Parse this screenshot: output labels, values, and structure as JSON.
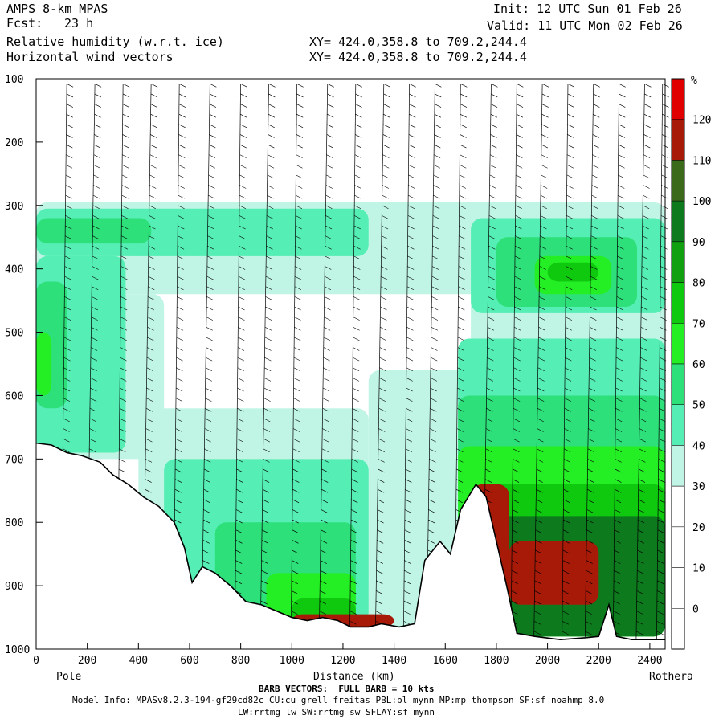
{
  "header": {
    "model": "AMPS 8-km MPAS",
    "fcst_label": "Fcst:",
    "fcst_value": "23 h",
    "field1": "Relative humidity (w.r.t. ice)",
    "field2": "Horizontal wind vectors",
    "init": "Init: 12 UTC Sun 01 Feb 26",
    "valid": "Valid: 11 UTC Mon 02 Feb 26",
    "xy1": "XY= 424.0,358.8 to 709.2,244.4",
    "xy2": "XY= 424.0,358.8 to 709.2,244.4"
  },
  "footer": {
    "barb_note": "BARB VECTORS:  FULL BARB = 10 kts",
    "model_info_1": "Model Info: MPASv8.2.3-194-gf29cd82c CU:cu_grell_freitas PBL:bl_mynn MP:mp_thompson SF:sf_noahmp 8.0",
    "model_info_2": "LW:rrtmg_lw SW:rrtmg_sw SFLAY:sf_mynn"
  },
  "chart_data": {
    "type": "heatmap",
    "xlabel": "Distance (km)",
    "x_left_label": "Pole",
    "x_right_label": "Rothera",
    "xlim": [
      0,
      2460
    ],
    "x_ticks": [
      0,
      200,
      400,
      600,
      800,
      1000,
      1200,
      1400,
      1600,
      1800,
      2000,
      2200,
      2400
    ],
    "ylim": [
      100,
      1000
    ],
    "y_inverted": true,
    "y_ticks": [
      100,
      200,
      300,
      400,
      500,
      600,
      700,
      800,
      900,
      1000
    ],
    "colorbar": {
      "unit": "%",
      "levels": [
        0,
        10,
        20,
        30,
        40,
        50,
        60,
        70,
        80,
        90,
        100,
        110,
        120
      ],
      "colors": [
        "#ffffff",
        "#ffffff",
        "#ffffff",
        "#ffffff",
        "#c0f5e5",
        "#55eeb5",
        "#2de07a",
        "#24ef24",
        "#0fc90f",
        "#10a010",
        "#0e7a1e",
        "#3a6a1a",
        "#a81a08",
        "#e00000"
      ]
    },
    "humidity_layers": [
      {
        "level": 30,
        "ranges": [
          {
            "x0": 0,
            "x1": 2460,
            "p0": 295,
            "p1": 440
          },
          {
            "x0": 0,
            "x1": 500,
            "p0": 440,
            "p1": 700
          },
          {
            "x0": 1700,
            "x1": 2460,
            "p0": 440,
            "p1": 980
          },
          {
            "x0": 1300,
            "x1": 1700,
            "p0": 560,
            "p1": 980
          },
          {
            "x0": 400,
            "x1": 1300,
            "p0": 620,
            "p1": 980
          }
        ]
      },
      {
        "level": 40,
        "ranges": [
          {
            "x0": 0,
            "x1": 1300,
            "p0": 305,
            "p1": 380
          },
          {
            "x0": 1700,
            "x1": 2460,
            "p0": 320,
            "p1": 470
          },
          {
            "x0": 0,
            "x1": 350,
            "p0": 380,
            "p1": 690
          },
          {
            "x0": 1650,
            "x1": 2460,
            "p0": 510,
            "p1": 980
          },
          {
            "x0": 500,
            "x1": 1300,
            "p0": 700,
            "p1": 960
          }
        ]
      },
      {
        "level": 50,
        "ranges": [
          {
            "x0": 0,
            "x1": 450,
            "p0": 320,
            "p1": 360
          },
          {
            "x0": 1800,
            "x1": 2350,
            "p0": 350,
            "p1": 460
          },
          {
            "x0": 0,
            "x1": 120,
            "p0": 420,
            "p1": 620
          },
          {
            "x0": 1650,
            "x1": 2460,
            "p0": 600,
            "p1": 980
          },
          {
            "x0": 700,
            "x1": 1250,
            "p0": 800,
            "p1": 960
          }
        ]
      },
      {
        "level": 60,
        "ranges": [
          {
            "x0": 1950,
            "x1": 2250,
            "p0": 380,
            "p1": 440
          },
          {
            "x0": 0,
            "x1": 60,
            "p0": 500,
            "p1": 600
          },
          {
            "x0": 1650,
            "x1": 2460,
            "p0": 680,
            "p1": 980
          },
          {
            "x0": 900,
            "x1": 1250,
            "p0": 880,
            "p1": 960
          }
        ]
      },
      {
        "level": 70,
        "ranges": [
          {
            "x0": 2000,
            "x1": 2200,
            "p0": 390,
            "p1": 420
          },
          {
            "x0": 1750,
            "x1": 2460,
            "p0": 740,
            "p1": 980
          },
          {
            "x0": 1000,
            "x1": 1250,
            "p0": 920,
            "p1": 960
          }
        ]
      },
      {
        "level": 90,
        "ranges": [
          {
            "x0": 1780,
            "x1": 2460,
            "p0": 790,
            "p1": 980
          }
        ]
      },
      {
        "level": 110,
        "ranges": [
          {
            "x0": 1700,
            "x1": 1850,
            "p0": 740,
            "p1": 950
          },
          {
            "x0": 1850,
            "x1": 2200,
            "p0": 830,
            "p1": 930
          },
          {
            "x0": 1000,
            "x1": 1400,
            "p0": 945,
            "p1": 965
          }
        ]
      }
    ],
    "terrain_pressure_hpa": [
      [
        0,
        675
      ],
      [
        60,
        678
      ],
      [
        120,
        690
      ],
      [
        180,
        695
      ],
      [
        250,
        705
      ],
      [
        300,
        725
      ],
      [
        360,
        740
      ],
      [
        420,
        760
      ],
      [
        480,
        775
      ],
      [
        540,
        800
      ],
      [
        580,
        840
      ],
      [
        610,
        895
      ],
      [
        650,
        870
      ],
      [
        700,
        880
      ],
      [
        760,
        900
      ],
      [
        820,
        925
      ],
      [
        880,
        930
      ],
      [
        940,
        940
      ],
      [
        1000,
        950
      ],
      [
        1060,
        955
      ],
      [
        1120,
        950
      ],
      [
        1180,
        955
      ],
      [
        1230,
        965
      ],
      [
        1300,
        965
      ],
      [
        1350,
        960
      ],
      [
        1420,
        965
      ],
      [
        1480,
        960
      ],
      [
        1520,
        860
      ],
      [
        1580,
        830
      ],
      [
        1620,
        850
      ],
      [
        1660,
        780
      ],
      [
        1720,
        740
      ],
      [
        1760,
        760
      ],
      [
        1800,
        830
      ],
      [
        1840,
        900
      ],
      [
        1880,
        975
      ],
      [
        1950,
        980
      ],
      [
        2050,
        985
      ],
      [
        2150,
        982
      ],
      [
        2200,
        980
      ],
      [
        2240,
        930
      ],
      [
        2270,
        980
      ],
      [
        2330,
        985
      ],
      [
        2400,
        985
      ],
      [
        2460,
        985
      ]
    ],
    "wind_barb_columns_km": [
      120,
      230,
      340,
      450,
      560,
      680,
      800,
      910,
      1020,
      1140,
      1250,
      1360,
      1460,
      1560,
      1660,
      1780,
      1880,
      1980,
      2080,
      2180,
      2280,
      2380,
      2450
    ]
  }
}
